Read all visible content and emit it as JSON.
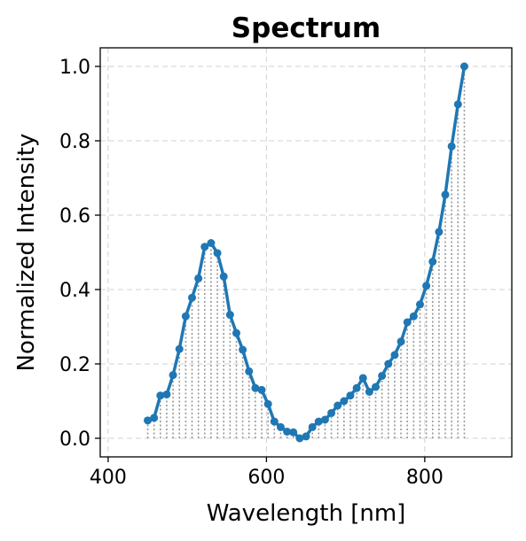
{
  "chart_data": {
    "type": "line",
    "title": "Spectrum",
    "xlabel": "Wavelength [nm]",
    "ylabel": "Normalized Intensity",
    "xlim": [
      390,
      910
    ],
    "ylim": [
      -0.05,
      1.05
    ],
    "xticks": [
      400,
      600,
      800
    ],
    "xtick_labels": [
      "400",
      "600",
      "800"
    ],
    "yticks": [
      0.0,
      0.2,
      0.4,
      0.6,
      0.8,
      1.0
    ],
    "ytick_labels": [
      "0.0",
      "0.2",
      "0.4",
      "0.6",
      "0.8",
      "1.0"
    ],
    "grid": true,
    "stems": true,
    "colors": {
      "series": "#1f77b4",
      "stems": "#999999",
      "grid": "#d0d0d0"
    },
    "series": [
      {
        "x": [
          450,
          458,
          466,
          474,
          482,
          490,
          498,
          506,
          514,
          522,
          530,
          538,
          546,
          554,
          562,
          570,
          578,
          586,
          594,
          602,
          610,
          618,
          626,
          634,
          642,
          650,
          658,
          666,
          674,
          682,
          690,
          698,
          706,
          714,
          722,
          730,
          738,
          746,
          754,
          762,
          770,
          778,
          786,
          794,
          802,
          810,
          818,
          826,
          834,
          842,
          850
        ],
        "y": [
          0.048,
          0.055,
          0.115,
          0.118,
          0.17,
          0.24,
          0.328,
          0.378,
          0.43,
          0.515,
          0.525,
          0.498,
          0.435,
          0.332,
          0.283,
          0.238,
          0.18,
          0.135,
          0.13,
          0.092,
          0.045,
          0.03,
          0.018,
          0.016,
          0.0,
          0.005,
          0.03,
          0.045,
          0.05,
          0.068,
          0.088,
          0.1,
          0.115,
          0.135,
          0.162,
          0.125,
          0.138,
          0.168,
          0.2,
          0.224,
          0.26,
          0.312,
          0.328,
          0.36,
          0.41,
          0.475,
          0.555,
          0.655,
          0.785,
          0.898,
          1.0
        ]
      }
    ]
  }
}
